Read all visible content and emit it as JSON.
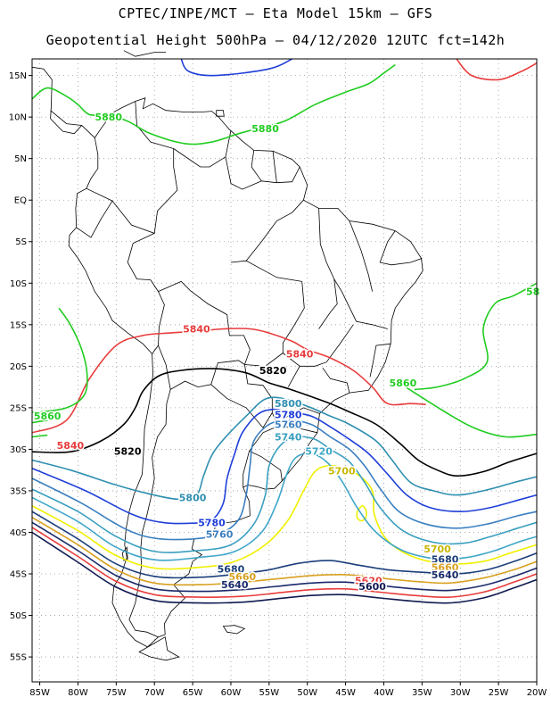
{
  "header": {
    "line1": "CPTEC/INPE/MCT –  Eta Model 15km – GFS",
    "line2": "Geopotential Height 500hPa – 04/12/2020 12UTC fct=142h"
  },
  "axes": {
    "lon_labels": [
      "85W",
      "80W",
      "75W",
      "70W",
      "65W",
      "60W",
      "55W",
      "50W",
      "45W",
      "40W",
      "35W",
      "30W",
      "25W",
      "20W"
    ],
    "lat_labels": [
      "15N",
      "10N",
      "5N",
      "EQ",
      "5S",
      "10S",
      "15S",
      "20S",
      "25S",
      "30S",
      "35S",
      "40S",
      "45S",
      "50S",
      "55S"
    ],
    "lon_values": [
      -85,
      -80,
      -75,
      -70,
      -65,
      -60,
      -55,
      -50,
      -45,
      -40,
      -35,
      -30,
      -25,
      -20
    ],
    "lat_values": [
      15,
      10,
      5,
      0,
      -5,
      -10,
      -15,
      -20,
      -25,
      -30,
      -35,
      -40,
      -45,
      -50,
      -55
    ],
    "lon_range": [
      -86,
      -20
    ],
    "lat_range": [
      -58,
      17
    ],
    "grid": "dotted"
  },
  "contours": [
    {
      "value": 5880,
      "label": "5880",
      "color": "#22cc22"
    },
    {
      "value": 5860,
      "label": "5860",
      "color": "#22cc22"
    },
    {
      "value": 5840,
      "label": "5840",
      "color": "#e83c3c"
    },
    {
      "value": 5820,
      "label": "5820",
      "color": "#000000"
    },
    {
      "value": 5800,
      "label": "5800",
      "color": "#2f8fb0"
    },
    {
      "value": 5780,
      "label": "5780",
      "color": "#1f3fd8"
    },
    {
      "value": 5760,
      "label": "5760",
      "color": "#3a7fc0"
    },
    {
      "value": 5740,
      "label": "5740",
      "color": "#3a9fc0"
    },
    {
      "value": 5720,
      "label": "5720",
      "color": "#3fa6c8"
    },
    {
      "value": 5700,
      "label": "5700",
      "color": "#f0f000"
    },
    {
      "value": 5680,
      "label": "5680",
      "color": "#1a3e7a"
    },
    {
      "value": 5660,
      "label": "5660",
      "color": "#d8a020"
    },
    {
      "value": 5640,
      "label": "5640",
      "color": "#1a2a6a"
    },
    {
      "value": 5620,
      "label": "5620",
      "color": "#e83c3c"
    },
    {
      "value": 5600,
      "label": "5600",
      "color": "#101a50"
    }
  ],
  "labels_shown": [
    {
      "text": "5880",
      "lon": -76,
      "lat": 10,
      "color": "#22cc22"
    },
    {
      "text": "5880",
      "lon": -55.5,
      "lat": 8.6,
      "color": "#22cc22"
    },
    {
      "text": "5860",
      "lon": -84,
      "lat": -26,
      "color": "#22cc22"
    },
    {
      "text": "5860",
      "lon": -37.5,
      "lat": -22,
      "color": "#22cc22"
    },
    {
      "text": "58",
      "lon": -20.5,
      "lat": -11,
      "color": "#22cc22"
    },
    {
      "text": "5840",
      "lon": -64.5,
      "lat": -15.5,
      "color": "#e83c3c"
    },
    {
      "text": "5840",
      "lon": -51,
      "lat": -18.5,
      "color": "#e83c3c"
    },
    {
      "text": "5840",
      "lon": -81,
      "lat": -29.5,
      "color": "#e83c3c"
    },
    {
      "text": "5820",
      "lon": -54.5,
      "lat": -20.5,
      "color": "#000000"
    },
    {
      "text": "5820",
      "lon": -73.5,
      "lat": -30.2,
      "color": "#000000"
    },
    {
      "text": "5800",
      "lon": -52.5,
      "lat": -24.5,
      "color": "#2f8fb0"
    },
    {
      "text": "5780",
      "lon": -52.5,
      "lat": -25.8,
      "color": "#1f3fd8"
    },
    {
      "text": "5760",
      "lon": -52.5,
      "lat": -27.0,
      "color": "#3a7fc0"
    },
    {
      "text": "5740",
      "lon": -52.5,
      "lat": -28.5,
      "color": "#3a9fc0"
    },
    {
      "text": "5720",
      "lon": -48.5,
      "lat": -30.2,
      "color": "#3fa6c8"
    },
    {
      "text": "5700",
      "lon": -45.5,
      "lat": -32.6,
      "color": "#c9b800"
    },
    {
      "text": "5800",
      "lon": -65,
      "lat": -35.8,
      "color": "#2f8fb0"
    },
    {
      "text": "5780",
      "lon": -62.5,
      "lat": -38.8,
      "color": "#1f3fd8"
    },
    {
      "text": "5760",
      "lon": -61.5,
      "lat": -40.2,
      "color": "#3a7fc0"
    },
    {
      "text": "5700",
      "lon": -33,
      "lat": -42,
      "color": "#c9b800"
    },
    {
      "text": "5680",
      "lon": -60,
      "lat": -44.4,
      "color": "#1a3e7a"
    },
    {
      "text": "5660",
      "lon": -58.5,
      "lat": -45.3,
      "color": "#d8a020"
    },
    {
      "text": "5640",
      "lon": -59.5,
      "lat": -46.3,
      "color": "#1a2a6a"
    },
    {
      "text": "5620",
      "lon": -42,
      "lat": -45.8,
      "color": "#e83c3c"
    },
    {
      "text": "5600",
      "lon": -41.5,
      "lat": -46.5,
      "color": "#101a50"
    },
    {
      "text": "5680",
      "lon": -32,
      "lat": -43.2,
      "color": "#1a3e7a"
    },
    {
      "text": "5660",
      "lon": -32,
      "lat": -44.2,
      "color": "#d8a020"
    },
    {
      "text": "5640",
      "lon": -32,
      "lat": -45.1,
      "color": "#1a2a6a"
    }
  ]
}
